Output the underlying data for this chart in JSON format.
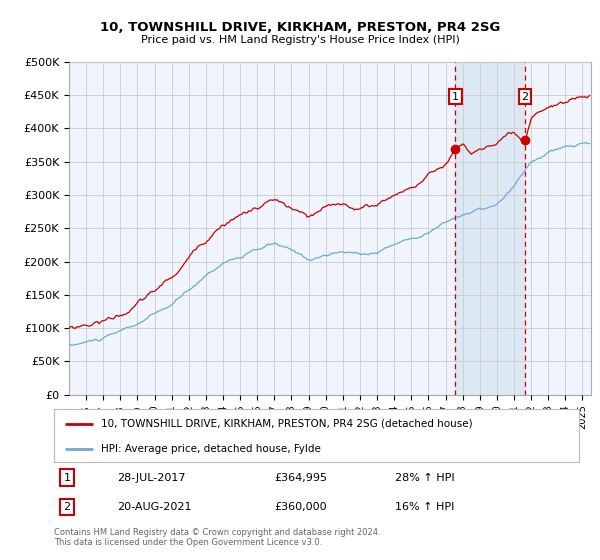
{
  "title1": "10, TOWNSHILL DRIVE, KIRKHAM, PRESTON, PR4 2SG",
  "title2": "Price paid vs. HM Land Registry's House Price Index (HPI)",
  "legend_line1": "10, TOWNSHILL DRIVE, KIRKHAM, PRESTON, PR4 2SG (detached house)",
  "legend_line2": "HPI: Average price, detached house, Fylde",
  "footnote": "Contains HM Land Registry data © Crown copyright and database right 2024.\nThis data is licensed under the Open Government Licence v3.0.",
  "marker1_x": 2017.57,
  "marker2_x": 2021.64,
  "marker1_y": 364995,
  "marker2_y": 360000,
  "red_color": "#cc0000",
  "blue_color": "#6fa8d8",
  "shade_color": "#dce9f5",
  "ylim": [
    0,
    500000
  ],
  "yticks": [
    0,
    50000,
    100000,
    150000,
    200000,
    250000,
    300000,
    350000,
    400000,
    450000,
    500000
  ],
  "xlim_min": 1995,
  "xlim_max": 2025.5,
  "xtick_years": [
    1996,
    1997,
    1998,
    1999,
    2000,
    2001,
    2002,
    2003,
    2004,
    2005,
    2006,
    2007,
    2008,
    2009,
    2010,
    2011,
    2012,
    2013,
    2014,
    2015,
    2016,
    2017,
    2018,
    2019,
    2020,
    2021,
    2022,
    2023,
    2024,
    2025
  ],
  "grid_color": "#cccccc",
  "bg_color": "#f0f4fc"
}
